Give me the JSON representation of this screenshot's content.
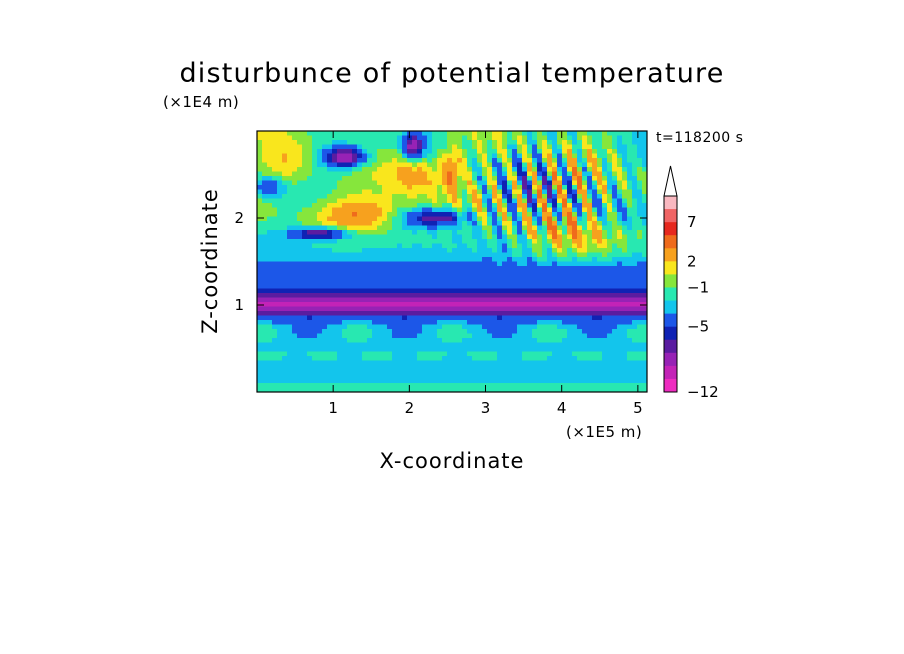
{
  "chart_data": {
    "type": "heatmap",
    "title": "disturbunce of potential temperature",
    "xlabel": "X-coordinate",
    "ylabel": "Z-coordinate",
    "x_unit": "(×1E5 m)",
    "y_unit": "(×1E4 m)",
    "time_label": "t=118200 s",
    "xlim": [
      0,
      5.12
    ],
    "ylim": [
      0,
      3.0
    ],
    "x_ticks": [
      1,
      2,
      3,
      4,
      5
    ],
    "y_ticks": [
      1,
      2
    ],
    "colorbar": {
      "labels": [
        {
          "value": 7,
          "text": "7"
        },
        {
          "value": 2,
          "text": "2"
        },
        {
          "value": -1,
          "text": "−1"
        },
        {
          "value": -5,
          "text": "−5"
        },
        {
          "value": -12,
          "text": "−12"
        }
      ],
      "colors_top_to_bottom": [
        "#f9b8c0",
        "#f06565",
        "#e6281e",
        "#ef6b1c",
        "#f7a11e",
        "#f9e61d",
        "#86e63c",
        "#28e8b1",
        "#13c5ec",
        "#1c57e8",
        "#0f22b4",
        "#5a1ca0",
        "#9722b5",
        "#c323b7",
        "#ee2cc0"
      ],
      "extend_top": true
    },
    "field_notes": "Blue negative band near Z≈1 (×1E4 m) spanning full X range; yellow/orange positive waves above Z≈1.8; wave packets with short wavelength for X between 3 and 5 (×1E5 m) above Z≈1.5."
  }
}
